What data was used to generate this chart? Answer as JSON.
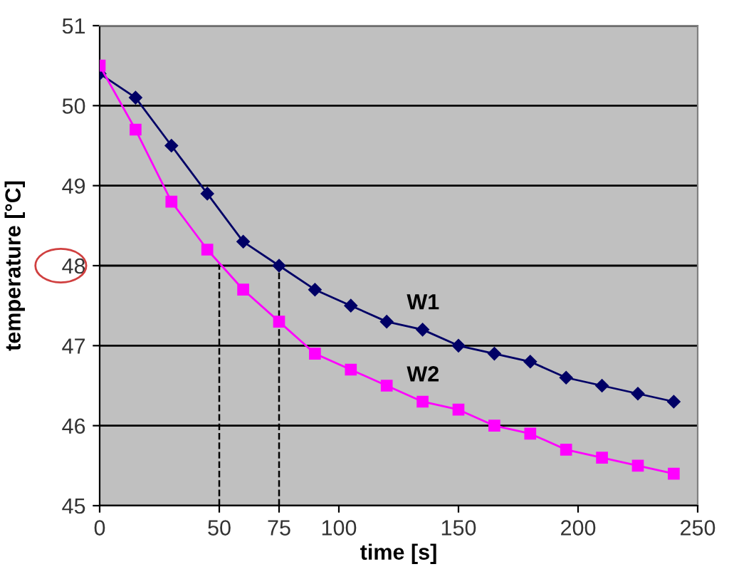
{
  "chart_data": {
    "type": "line",
    "xlabel": "time [s]",
    "ylabel": "temperature [°C]",
    "xlim": [
      0,
      250
    ],
    "xticks": [
      0,
      50,
      75,
      100,
      150,
      200,
      250
    ],
    "ylim": [
      45,
      51
    ],
    "yticks": [
      45,
      46,
      47,
      48,
      49,
      50,
      51
    ],
    "grid": "y",
    "legend": false,
    "line_style": "solid",
    "series": [
      {
        "name": "W1",
        "color": "#000066",
        "marker": "diamond",
        "x": [
          0,
          15,
          30,
          45,
          60,
          75,
          90,
          105,
          120,
          135,
          150,
          165,
          180,
          195,
          210,
          225,
          240
        ],
        "values": [
          50.4,
          50.1,
          49.5,
          48.9,
          48.3,
          48.0,
          47.7,
          47.5,
          47.3,
          47.2,
          47.0,
          46.9,
          46.8,
          46.6,
          46.5,
          46.4,
          46.3
        ]
      },
      {
        "name": "W2",
        "color": "#ff00ff",
        "marker": "square",
        "x": [
          0,
          15,
          30,
          45,
          60,
          75,
          90,
          105,
          120,
          135,
          150,
          165,
          180,
          195,
          210,
          225,
          240
        ],
        "values": [
          50.5,
          49.7,
          48.8,
          48.2,
          47.7,
          47.3,
          46.9,
          46.7,
          46.5,
          46.3,
          46.2,
          46.0,
          45.9,
          45.7,
          45.6,
          45.5,
          45.4
        ]
      }
    ],
    "ref_lines": [
      {
        "axis": "x",
        "value": 50,
        "color": "#000000",
        "line_style": "dashed"
      },
      {
        "axis": "x",
        "value": 75,
        "color": "#000000",
        "line_style": "dashed"
      }
    ]
  }
}
